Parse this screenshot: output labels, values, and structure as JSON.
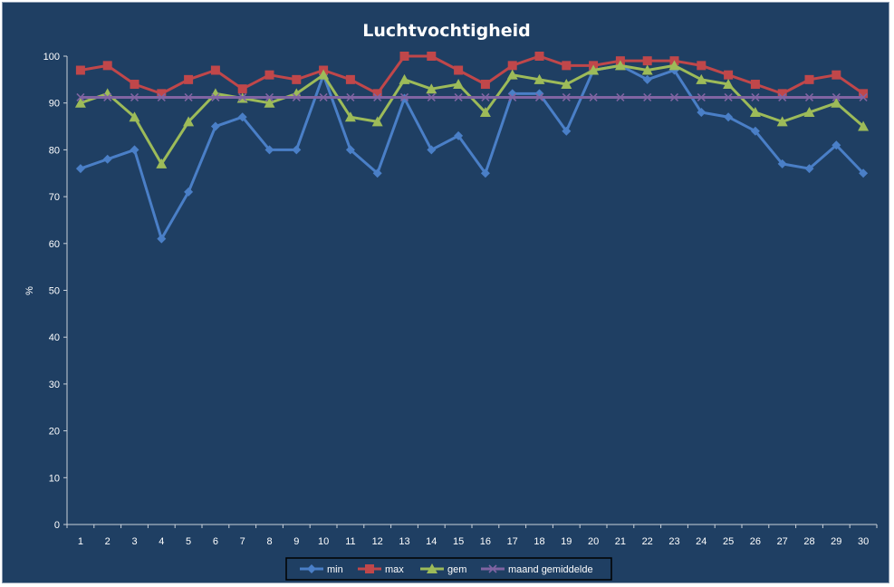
{
  "chart_data": {
    "type": "line",
    "title": "Luchtvochtigheid",
    "xlabel": "",
    "ylabel": "%",
    "ylim": [
      0,
      100
    ],
    "yticks": [
      0,
      10,
      20,
      30,
      40,
      50,
      60,
      70,
      80,
      90,
      100
    ],
    "categories": [
      "1",
      "2",
      "3",
      "4",
      "5",
      "6",
      "7",
      "8",
      "9",
      "10",
      "11",
      "12",
      "13",
      "14",
      "15",
      "16",
      "17",
      "18",
      "19",
      "20",
      "21",
      "22",
      "23",
      "24",
      "25",
      "26",
      "27",
      "28",
      "29",
      "30"
    ],
    "grid": false,
    "legend_position": "bottom",
    "series": [
      {
        "name": "min",
        "color": "#4a7fc7",
        "marker": "diamond",
        "values": [
          76,
          78,
          80,
          61,
          71,
          85,
          87,
          80,
          80,
          96,
          80,
          75,
          91,
          80,
          83,
          75,
          92,
          92,
          84,
          97,
          98,
          95,
          97,
          88,
          87,
          84,
          77,
          76,
          81,
          75
        ]
      },
      {
        "name": "max",
        "color": "#c0474a",
        "marker": "square",
        "values": [
          97,
          98,
          94,
          92,
          95,
          97,
          93,
          96,
          95,
          97,
          95,
          92,
          100,
          100,
          97,
          94,
          98,
          100,
          98,
          98,
          99,
          99,
          99,
          98,
          96,
          94,
          92,
          95,
          96,
          92
        ]
      },
      {
        "name": "gem",
        "color": "#9dbb59",
        "marker": "triangle",
        "values": [
          90,
          92,
          87,
          77,
          86,
          92,
          91,
          90,
          92,
          96,
          87,
          86,
          95,
          93,
          94,
          88,
          96,
          95,
          94,
          97,
          98,
          97,
          98,
          95,
          94,
          88,
          86,
          88,
          90,
          85
        ]
      },
      {
        "name": "maand gemiddelde",
        "color": "#8064a2",
        "marker": "x",
        "values": [
          91.2,
          91.2,
          91.2,
          91.2,
          91.2,
          91.2,
          91.2,
          91.2,
          91.2,
          91.2,
          91.2,
          91.2,
          91.2,
          91.2,
          91.2,
          91.2,
          91.2,
          91.2,
          91.2,
          91.2,
          91.2,
          91.2,
          91.2,
          91.2,
          91.2,
          91.2,
          91.2,
          91.2,
          91.2,
          91.2
        ]
      }
    ]
  }
}
